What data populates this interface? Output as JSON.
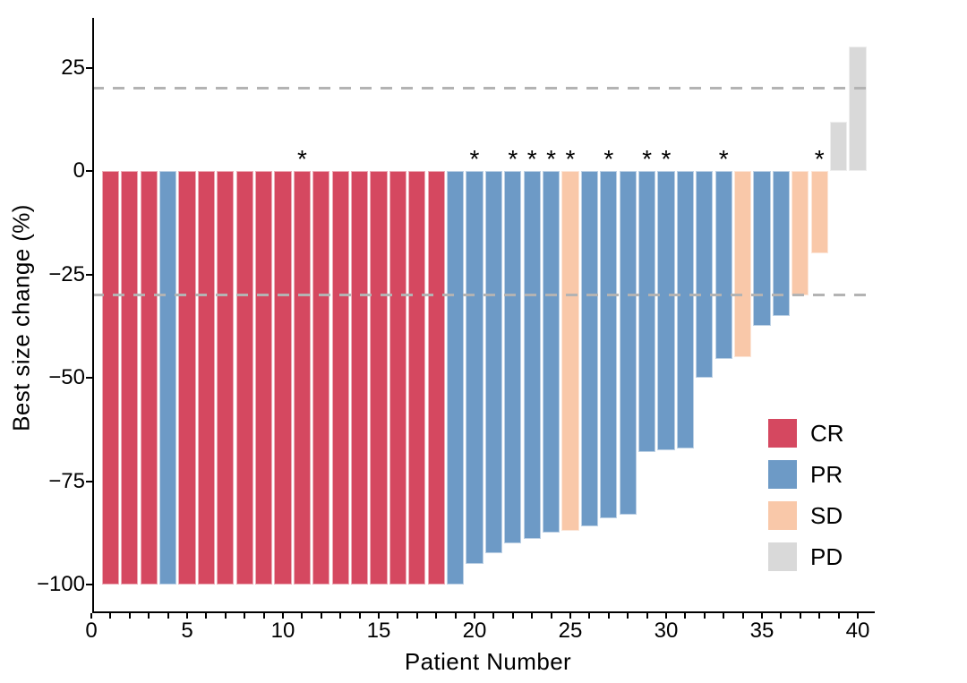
{
  "chart_data": {
    "type": "bar",
    "variant": "waterfall-plot",
    "title": "",
    "xlabel": "Patient Number",
    "ylabel": "Best size change (%)",
    "x_tick_labels": [
      "0",
      "5",
      "10",
      "15",
      "20",
      "25",
      "30",
      "35",
      "40"
    ],
    "x_tick_values": [
      0,
      5,
      10,
      15,
      20,
      25,
      30,
      35,
      40
    ],
    "x_minor_tick_every": 1,
    "x_range": [
      0,
      41
    ],
    "y_tick_labels": [
      "25",
      "0",
      "−25",
      "−50",
      "−75",
      "−100"
    ],
    "y_tick_values": [
      25,
      0,
      -25,
      -50,
      -75,
      -100
    ],
    "ylim": [
      -106.8,
      37
    ],
    "grid": false,
    "reference_lines": {
      "upper": 20,
      "lower": -30
    },
    "annotation_symbol": "*",
    "legend_position": "inside-right",
    "legend": [
      {
        "label": "CR",
        "color": "#d54860"
      },
      {
        "label": "PR",
        "color": "#6d9ac6"
      },
      {
        "label": "SD",
        "color": "#f9c8a9"
      },
      {
        "label": "PD",
        "color": "#d9d9d9"
      }
    ],
    "patients": [
      {
        "n": 1,
        "value": -100,
        "response": "CR",
        "flagged": false
      },
      {
        "n": 2,
        "value": -100,
        "response": "CR",
        "flagged": false
      },
      {
        "n": 3,
        "value": -100,
        "response": "CR",
        "flagged": false
      },
      {
        "n": 4,
        "value": -100,
        "response": "PR",
        "flagged": false
      },
      {
        "n": 5,
        "value": -100,
        "response": "CR",
        "flagged": false
      },
      {
        "n": 6,
        "value": -100,
        "response": "CR",
        "flagged": false
      },
      {
        "n": 7,
        "value": -100,
        "response": "CR",
        "flagged": false
      },
      {
        "n": 8,
        "value": -100,
        "response": "CR",
        "flagged": false
      },
      {
        "n": 9,
        "value": -100,
        "response": "CR",
        "flagged": false
      },
      {
        "n": 10,
        "value": -100,
        "response": "CR",
        "flagged": false
      },
      {
        "n": 11,
        "value": -100,
        "response": "CR",
        "flagged": true
      },
      {
        "n": 12,
        "value": -100,
        "response": "CR",
        "flagged": false
      },
      {
        "n": 13,
        "value": -100,
        "response": "CR",
        "flagged": false
      },
      {
        "n": 14,
        "value": -100,
        "response": "CR",
        "flagged": false
      },
      {
        "n": 15,
        "value": -100,
        "response": "CR",
        "flagged": false
      },
      {
        "n": 16,
        "value": -100,
        "response": "CR",
        "flagged": false
      },
      {
        "n": 17,
        "value": -100,
        "response": "CR",
        "flagged": false
      },
      {
        "n": 18,
        "value": -100,
        "response": "CR",
        "flagged": false
      },
      {
        "n": 19,
        "value": -100,
        "response": "PR",
        "flagged": false
      },
      {
        "n": 20,
        "value": -95,
        "response": "PR",
        "flagged": true
      },
      {
        "n": 21,
        "value": -92.5,
        "response": "PR",
        "flagged": false
      },
      {
        "n": 22,
        "value": -90,
        "response": "PR",
        "flagged": true
      },
      {
        "n": 23,
        "value": -89,
        "response": "PR",
        "flagged": true
      },
      {
        "n": 24,
        "value": -87.5,
        "response": "PR",
        "flagged": true
      },
      {
        "n": 25,
        "value": -87,
        "response": "SD",
        "flagged": true
      },
      {
        "n": 26,
        "value": -86,
        "response": "PR",
        "flagged": false
      },
      {
        "n": 27,
        "value": -84,
        "response": "PR",
        "flagged": true
      },
      {
        "n": 28,
        "value": -83,
        "response": "PR",
        "flagged": false
      },
      {
        "n": 29,
        "value": -68,
        "response": "PR",
        "flagged": true
      },
      {
        "n": 30,
        "value": -67.5,
        "response": "PR",
        "flagged": true
      },
      {
        "n": 31,
        "value": -67,
        "response": "PR",
        "flagged": false
      },
      {
        "n": 32,
        "value": -50,
        "response": "PR",
        "flagged": false
      },
      {
        "n": 33,
        "value": -45.5,
        "response": "PR",
        "flagged": true
      },
      {
        "n": 34,
        "value": -45,
        "response": "SD",
        "flagged": false
      },
      {
        "n": 35,
        "value": -37.5,
        "response": "PR",
        "flagged": false
      },
      {
        "n": 36,
        "value": -35,
        "response": "PR",
        "flagged": false
      },
      {
        "n": 37,
        "value": -30,
        "response": "SD",
        "flagged": false
      },
      {
        "n": 38,
        "value": -20,
        "response": "SD",
        "flagged": true
      },
      {
        "n": 39,
        "value": 12,
        "response": "PD",
        "flagged": false
      },
      {
        "n": 40,
        "value": 30,
        "response": "PD",
        "flagged": false
      }
    ]
  },
  "colors": {
    "background": "#ffffff",
    "axis": "#000000",
    "text": "#000000",
    "dashed_line": "#b3b3b3"
  }
}
